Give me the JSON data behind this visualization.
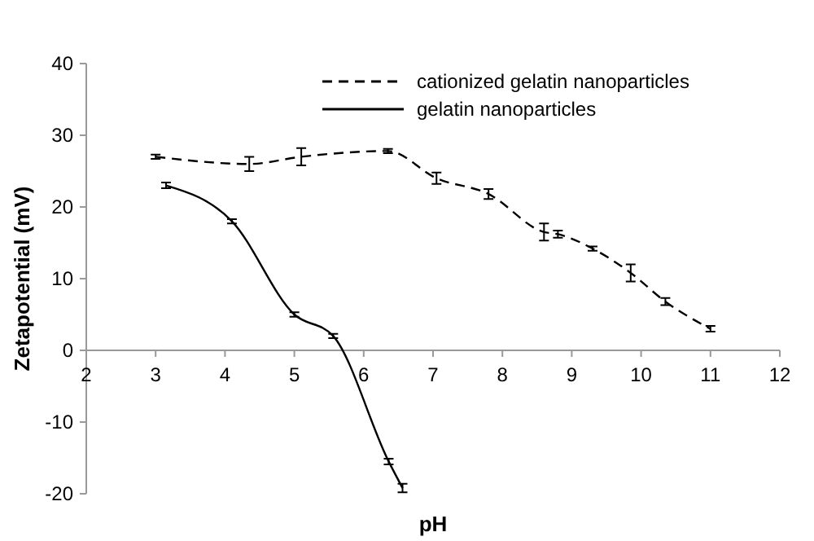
{
  "chart_data": {
    "type": "line",
    "xlabel": "pH",
    "ylabel": "Zetapotential (mV)",
    "xlim": [
      2,
      12
    ],
    "xticks": [
      2,
      3,
      4,
      5,
      6,
      7,
      8,
      9,
      10,
      11,
      12
    ],
    "ylim": [
      -20,
      40
    ],
    "yticks": [
      -20,
      -10,
      0,
      10,
      20,
      30,
      40
    ],
    "grid": false,
    "legend": "top right",
    "marker": "none",
    "series": [
      {
        "name": "cationized gelatin nanoparticles",
        "color": "#000000",
        "line_style": "dashed",
        "x": [
          3,
          4.35,
          5.1,
          6.35,
          7.05,
          7.8,
          8.6,
          8.8,
          9.3,
          9.85,
          10.35,
          11
        ],
        "values": [
          27,
          26,
          27,
          27.8,
          24,
          21.8,
          16.5,
          16.2,
          14.2,
          10.8,
          6.8,
          3
        ],
        "errors": [
          0.3,
          1,
          1.2,
          0.3,
          0.8,
          0.7,
          1.2,
          0.5,
          0.3,
          1.2,
          0.5,
          0.4
        ]
      },
      {
        "name": "gelatin nanoparticles",
        "color": "#000000",
        "line_style": "solid",
        "x": [
          3.15,
          4.1,
          5,
          5.56,
          6.36,
          6.56
        ],
        "values": [
          23,
          18,
          5,
          2,
          -15.5,
          -19.2
        ],
        "errors": [
          0.4,
          0.3,
          0.3,
          0.3,
          0.4,
          0.6
        ]
      }
    ]
  }
}
